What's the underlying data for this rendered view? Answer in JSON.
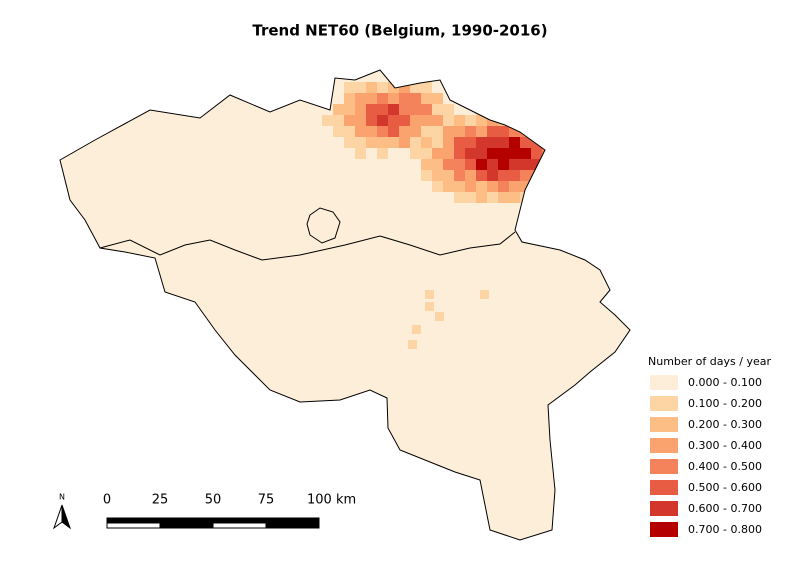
{
  "title": "Trend NET60 (Belgium, 1990-2016)",
  "legend": {
    "title": "Number of days / year",
    "entries": [
      {
        "label": "0.000 - 0.100",
        "color": "#fdeed9"
      },
      {
        "label": "0.100 - 0.200",
        "color": "#fdd5a5"
      },
      {
        "label": "0.200 - 0.300",
        "color": "#fcbe84"
      },
      {
        "label": "0.300 - 0.400",
        "color": "#fba36f"
      },
      {
        "label": "0.400 - 0.500",
        "color": "#f4825a"
      },
      {
        "label": "0.500 - 0.600",
        "color": "#e85c44"
      },
      {
        "label": "0.600 - 0.700",
        "color": "#d3362a"
      },
      {
        "label": "0.700 - 0.800",
        "color": "#b50000"
      }
    ]
  },
  "scale_bar": {
    "labels": [
      "0",
      "25",
      "50",
      "75",
      "100 km"
    ]
  },
  "north_arrow": {
    "label": "N"
  }
}
